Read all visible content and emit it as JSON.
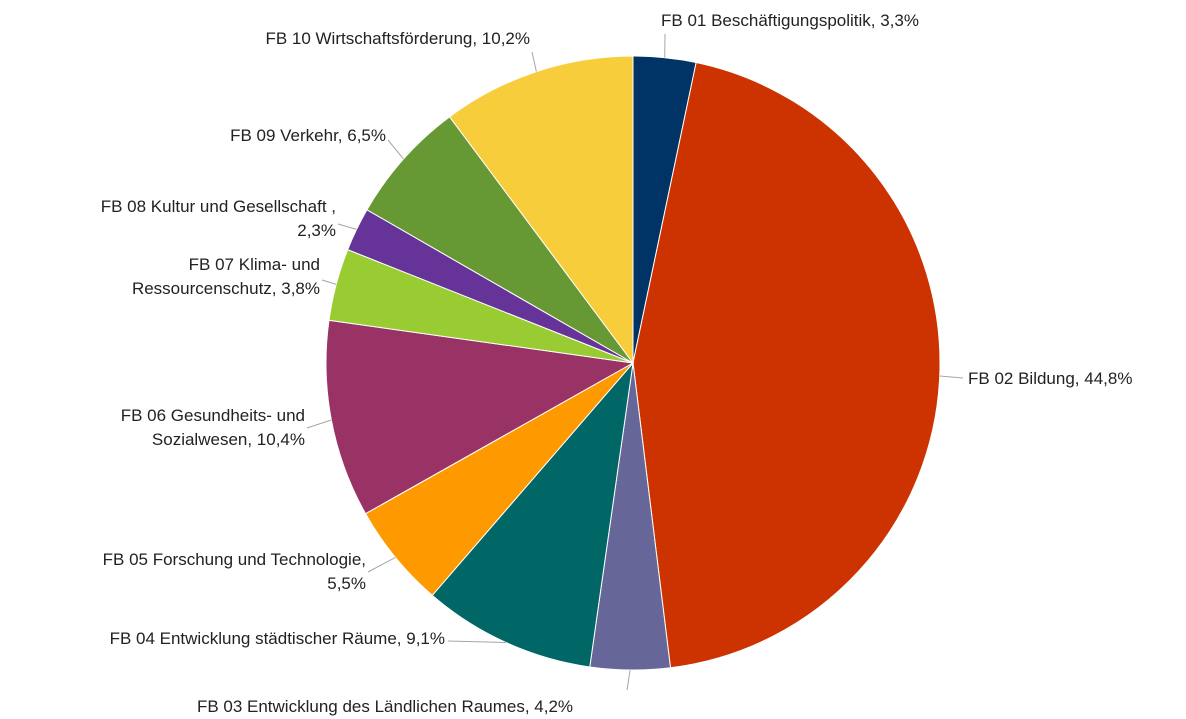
{
  "chart_data": {
    "type": "pie",
    "categories": [
      "FB 01 Beschäftigungspolitik, 3,3%",
      "FB 02 Bildung, 44,8%",
      "FB 03 Entwicklung des Ländlichen Raumes, 4,2%",
      "FB 04 Entwicklung städtischer Räume, 9,1%",
      "FB 05 Forschung und Technologie,\n5,5%",
      "FB 06 Gesundheits- und\nSozialwesen, 10,4%",
      "FB 07 Klima- und\nRessourcenschutz, 3,8%",
      "FB 08 Kultur und Gesellschaft ,\n2,3%",
      "FB 09 Verkehr, 6,5%",
      "FB 10 Wirtschaftsförderung, 10,2%"
    ],
    "values": [
      3.3,
      44.8,
      4.2,
      9.1,
      5.5,
      10.4,
      3.8,
      2.3,
      6.5,
      10.2
    ],
    "colors": [
      "#003366",
      "#cc3300",
      "#666699",
      "#006666",
      "#ff9900",
      "#993366",
      "#99cc33",
      "#663399",
      "#669933",
      "#f8cd3c"
    ]
  }
}
